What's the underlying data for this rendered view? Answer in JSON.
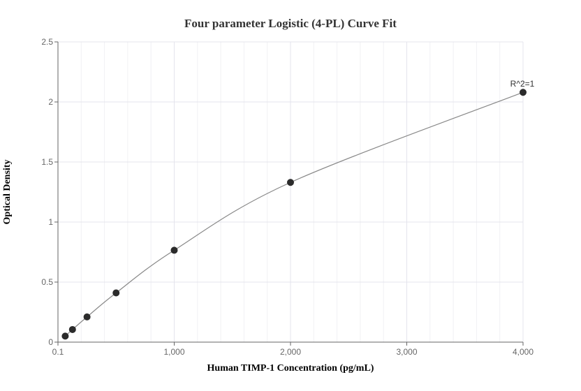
{
  "chart_data": {
    "type": "scatter",
    "title": "Four parameter Logistic (4-PL) Curve Fit",
    "xlabel": "Human TIMP-1 Concentration (pg/mL)",
    "ylabel": "Optical Density",
    "xlim": [
      0.1,
      4000
    ],
    "ylim": [
      0,
      2.5
    ],
    "x_ticks": [
      0.1,
      1000,
      2000,
      3000,
      4000
    ],
    "x_tick_labels": [
      "0.1",
      "1,000",
      "2,000",
      "3,000",
      "4,000"
    ],
    "y_ticks": [
      0,
      0.5,
      1,
      1.5,
      2,
      2.5
    ],
    "y_tick_labels": [
      "0",
      "0.5",
      "1",
      "1.5",
      "2",
      "2.5"
    ],
    "grid": true,
    "points": {
      "x": [
        62.5,
        125,
        250,
        500,
        1000,
        2000,
        4000
      ],
      "y": [
        0.05,
        0.105,
        0.21,
        0.41,
        0.765,
        1.33,
        2.08
      ]
    },
    "fit_curve": {
      "model": "4PL",
      "color": "#888888"
    },
    "annotation": {
      "text": "R^2=1",
      "x": 4000,
      "y": 2.08
    },
    "marker_color": "#2b2b2b"
  }
}
